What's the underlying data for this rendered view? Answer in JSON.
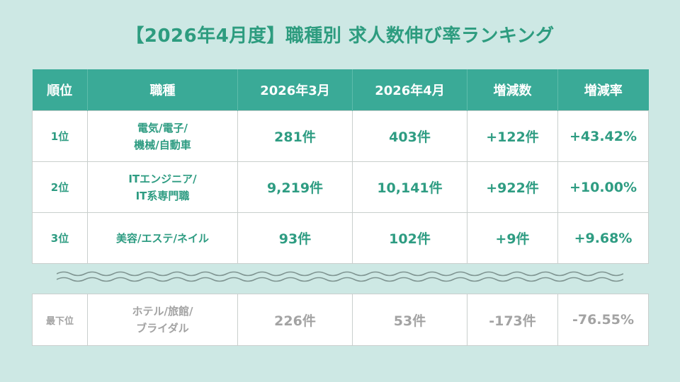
{
  "title": "【2026年4月度】職種別 求人数伸び率ランキング",
  "headers": [
    "順位",
    "職種",
    "2026年3月",
    "2026年4月",
    "増減数",
    "増減率"
  ],
  "rows": [
    {
      "rank": "1位",
      "job_line1": "電気/電子/",
      "job_line2": "機械/自動車",
      "mar": "281件",
      "apr": "403件",
      "diff": "+122件",
      "rate": "+43.42%"
    },
    {
      "rank": "2位",
      "job_line1": "ITエンジニア/",
      "job_line2": "IT系専門職",
      "mar": "9,219件",
      "apr": "10,141件",
      "diff": "+922件",
      "rate": "+10.00%"
    },
    {
      "rank": "3位",
      "job_line1": "美容/エステ/ネイル",
      "job_line2": "",
      "mar": "93件",
      "apr": "102件",
      "diff": "+9件",
      "rate": "+9.68%"
    }
  ],
  "last": {
    "rank": "最下位",
    "job_line1": "ホテル/旅館/",
    "job_line2": "ブライダル",
    "mar": "226件",
    "apr": "53件",
    "diff": "-173件",
    "rate": "-76.55%"
  }
}
